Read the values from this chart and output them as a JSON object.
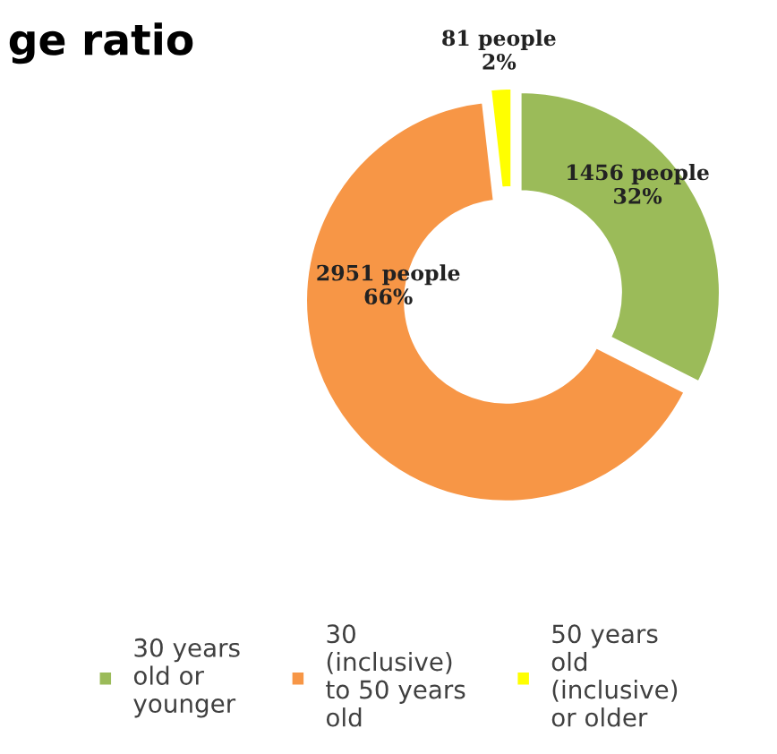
{
  "chart_data": {
    "type": "donut",
    "title": "ge ratio",
    "categories": [
      "30 years\nold or\nyounger",
      "30\n(inclusive)\nto 50 years\nold",
      "50 years\nold\n(inclusive)\nor older"
    ],
    "values": [
      1456,
      2951,
      81
    ],
    "colors": [
      "#9bbb59",
      "#f79646",
      "#ffff00"
    ],
    "value_labels": [
      "1456 people\n32%",
      "2951 people\n66%",
      "81 people\n2%"
    ],
    "legend": "bottom"
  }
}
